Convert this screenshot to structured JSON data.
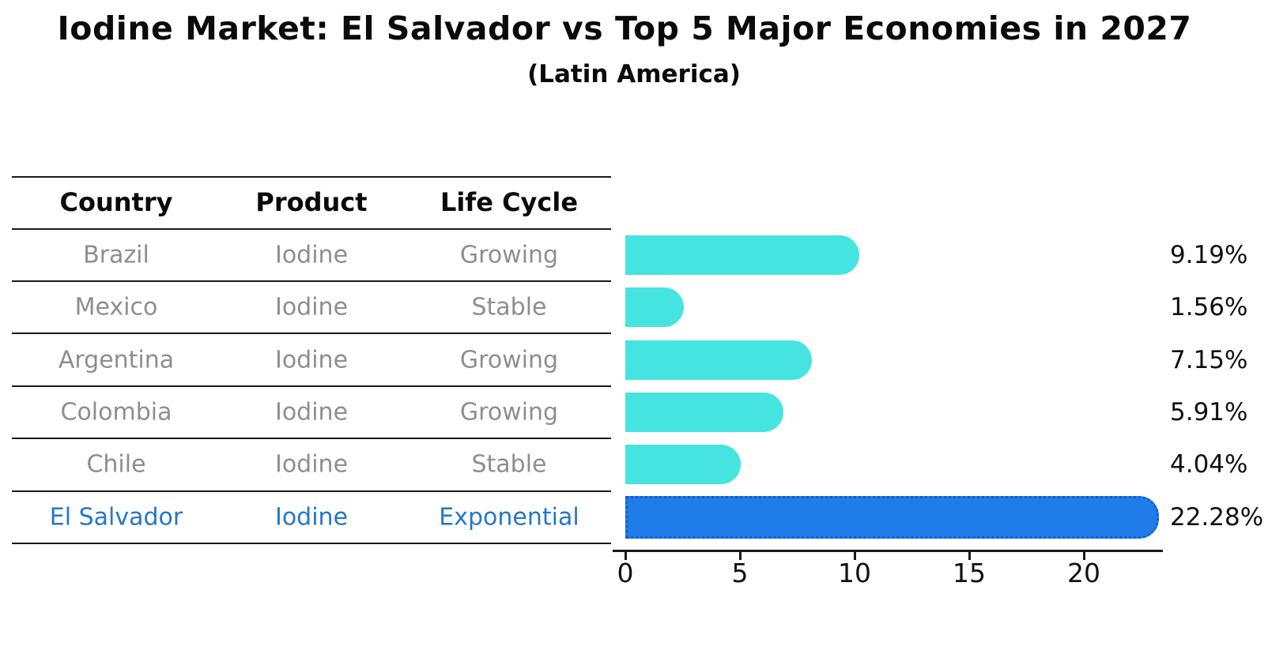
{
  "title": "Iodine Market: El Salvador vs Top 5 Major Economies in 2027",
  "subtitle": "(Latin America)",
  "table": {
    "headers": [
      "Country",
      "Product",
      "Life Cycle"
    ],
    "rows": [
      {
        "country": "Brazil",
        "product": "Iodine",
        "life_cycle": "Growing",
        "highlight": false
      },
      {
        "country": "Mexico",
        "product": "Iodine",
        "life_cycle": "Stable",
        "highlight": false
      },
      {
        "country": "Argentina",
        "product": "Iodine",
        "life_cycle": "Growing",
        "highlight": false
      },
      {
        "country": "Colombia",
        "product": "Iodine",
        "life_cycle": "Growing",
        "highlight": false
      },
      {
        "country": "Chile",
        "product": "Iodine",
        "life_cycle": "Stable",
        "highlight": false
      },
      {
        "country": "El Salvador",
        "product": "Iodine",
        "life_cycle": "Exponential",
        "highlight": true
      }
    ]
  },
  "chart_data": {
    "type": "bar",
    "orientation": "horizontal",
    "title": "Iodine Market: El Salvador vs Top 5 Major Economies in 2027",
    "subtitle": "(Latin America)",
    "categories": [
      "Brazil",
      "Mexico",
      "Argentina",
      "Colombia",
      "Chile",
      "El Salvador"
    ],
    "values": [
      9.19,
      1.56,
      7.15,
      5.91,
      4.04,
      22.28
    ],
    "value_labels": [
      "9.19%",
      "1.56%",
      "7.15%",
      "5.91%",
      "4.04%",
      "22.28%"
    ],
    "highlight_category": "El Salvador",
    "x_ticks": [
      0,
      5,
      10,
      15,
      20
    ],
    "xlim": [
      0,
      23.5
    ],
    "bar_length_offset": 1,
    "grid": false,
    "legend": false,
    "colors": {
      "default_bar": "#45e4e0",
      "highlight_bar": "#1f7ce8",
      "highlight_bar_border": "#1660cf",
      "row_text": "#8e8e8e",
      "highlight_text": "#2577c8",
      "header_text": "#0a0a0a",
      "label_text": "#111111"
    }
  }
}
